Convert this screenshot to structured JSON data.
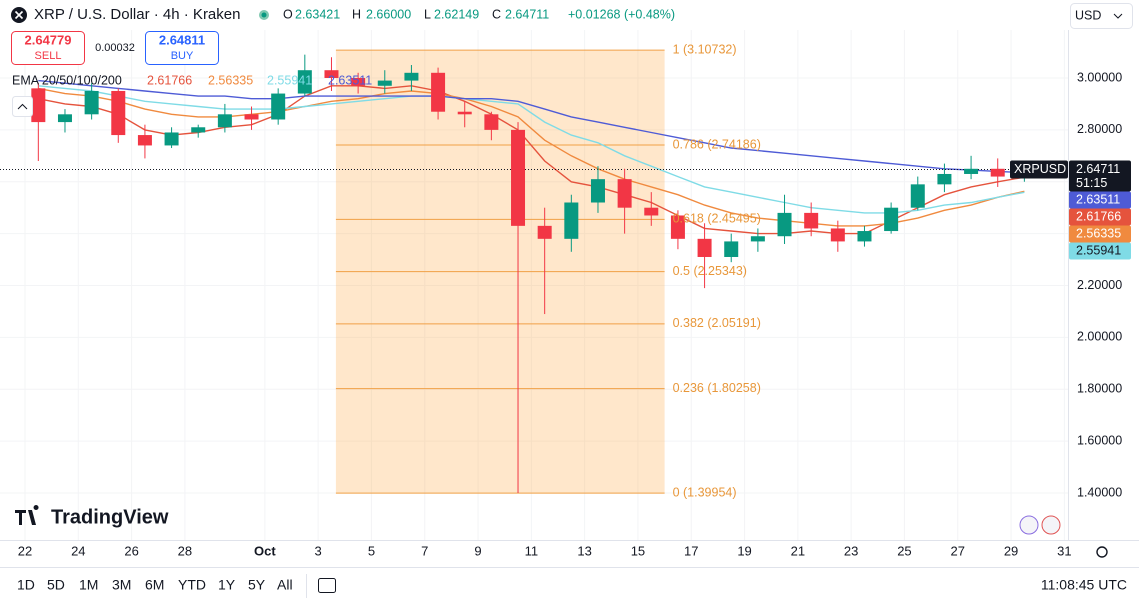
{
  "header": {
    "symbol": "XRP / U.S. Dollar · 4h · Kraken",
    "ohlc": [
      {
        "key": "O",
        "value": "2.63421"
      },
      {
        "key": "H",
        "value": "2.66000"
      },
      {
        "key": "L",
        "value": "2.62149"
      },
      {
        "key": "C",
        "value": "2.64711"
      }
    ],
    "change": "+0.01268 (+0.48%)",
    "currency": "USD"
  },
  "trade": {
    "sell_price": "2.64779",
    "sell": "SELL",
    "spread": "0.00032",
    "buy_price": "2.64811",
    "buy": "BUY"
  },
  "chart_data": {
    "type": "candlestick",
    "x": [
      "09-22",
      "09-23",
      "09-24",
      "09-25",
      "09-26",
      "09-27",
      "09-28",
      "09-29",
      "09-30",
      "10-01",
      "10-02",
      "10-03",
      "10-04",
      "10-05",
      "10-06",
      "10-07",
      "10-08",
      "10-09",
      "10-10",
      "10-11",
      "10-12",
      "10-13",
      "10-14",
      "10-15",
      "10-16",
      "10-17",
      "10-18",
      "10-19",
      "10-20",
      "10-21",
      "10-22",
      "10-23",
      "10-24",
      "10-25",
      "10-26",
      "10-27",
      "10-28",
      "10-29"
    ],
    "open": [
      2.96,
      2.83,
      2.86,
      2.95,
      2.78,
      2.74,
      2.79,
      2.81,
      2.86,
      2.84,
      2.94,
      3.03,
      3.0,
      2.97,
      2.99,
      3.02,
      2.87,
      2.86,
      2.8,
      2.43,
      2.38,
      2.52,
      2.61,
      2.5,
      2.47,
      2.38,
      2.31,
      2.37,
      2.39,
      2.48,
      2.42,
      2.37,
      2.41,
      2.5,
      2.59,
      2.63,
      2.65,
      2.62
    ],
    "high": [
      2.98,
      2.88,
      2.98,
      2.96,
      2.82,
      2.81,
      2.82,
      2.9,
      2.89,
      2.96,
      3.09,
      3.08,
      3.02,
      3.03,
      3.05,
      3.04,
      2.91,
      2.87,
      2.83,
      2.5,
      2.55,
      2.66,
      2.65,
      2.56,
      2.49,
      2.44,
      2.4,
      2.42,
      2.55,
      2.52,
      2.45,
      2.43,
      2.52,
      2.62,
      2.67,
      2.7,
      2.69,
      2.66
    ],
    "low": [
      2.68,
      2.79,
      2.84,
      2.75,
      2.69,
      2.73,
      2.77,
      2.79,
      2.8,
      2.82,
      2.93,
      2.95,
      2.94,
      2.94,
      2.95,
      2.84,
      2.81,
      2.76,
      1.4,
      2.09,
      2.33,
      2.48,
      2.4,
      2.43,
      2.34,
      2.19,
      2.29,
      2.33,
      2.36,
      2.39,
      2.33,
      2.35,
      2.4,
      2.49,
      2.56,
      2.61,
      2.58,
      2.6
    ],
    "close": [
      2.83,
      2.86,
      2.95,
      2.78,
      2.74,
      2.79,
      2.81,
      2.86,
      2.84,
      2.94,
      3.03,
      3.0,
      2.97,
      2.99,
      3.02,
      2.87,
      2.86,
      2.8,
      2.43,
      2.38,
      2.52,
      2.61,
      2.5,
      2.47,
      2.38,
      2.31,
      2.37,
      2.39,
      2.48,
      2.42,
      2.37,
      2.41,
      2.5,
      2.59,
      2.63,
      2.65,
      2.62,
      2.64711
    ],
    "up_color": "#089981",
    "down_color": "#f23645",
    "ylim": [
      1.219,
      3.185
    ],
    "yticks": [
      {
        "value": 1.4,
        "label": "1.40000"
      },
      {
        "value": 1.6,
        "label": "1.60000"
      },
      {
        "value": 1.8,
        "label": "1.80000"
      },
      {
        "value": 2,
        "label": "2.00000"
      },
      {
        "value": 2.2,
        "label": "2.20000"
      },
      {
        "value": 2.4,
        "label": "2.40000"
      },
      {
        "value": 2.6,
        "label": "2.60000"
      },
      {
        "value": 2.8,
        "label": "2.80000"
      },
      {
        "value": 3,
        "label": "3.00000"
      }
    ],
    "xticks": [
      {
        "value": "09-22",
        "label": "22"
      },
      {
        "value": "09-24",
        "label": "24"
      },
      {
        "value": "09-26",
        "label": "26"
      },
      {
        "value": "09-28",
        "label": "28"
      },
      {
        "value": "10-01",
        "label": "Oct"
      },
      {
        "value": "10-03",
        "label": "3"
      },
      {
        "value": "10-05",
        "label": "5"
      },
      {
        "value": "10-07",
        "label": "7"
      },
      {
        "value": "10-09",
        "label": "9"
      },
      {
        "value": "10-11",
        "label": "11"
      },
      {
        "value": "10-13",
        "label": "13"
      },
      {
        "value": "10-15",
        "label": "15"
      },
      {
        "value": "10-17",
        "label": "17"
      },
      {
        "value": "10-19",
        "label": "19"
      },
      {
        "value": "10-21",
        "label": "21"
      },
      {
        "value": "10-23",
        "label": "23"
      },
      {
        "value": "10-25",
        "label": "25"
      },
      {
        "value": "10-27",
        "label": "27"
      },
      {
        "value": "10-29",
        "label": "29"
      },
      {
        "value": "10-31",
        "label": "31"
      }
    ],
    "grid": true,
    "indicator": "EMA 20/50/100/200",
    "series": [
      {
        "color": "#e5533d",
        "values": [
          2.92,
          2.9,
          2.89,
          2.86,
          2.8,
          2.78,
          2.79,
          2.81,
          2.82,
          2.86,
          2.93,
          2.97,
          2.97,
          2.96,
          2.97,
          2.95,
          2.91,
          2.86,
          2.8,
          2.68,
          2.6,
          2.58,
          2.55,
          2.52,
          2.47,
          2.42,
          2.41,
          2.4,
          2.4,
          2.41,
          2.4,
          2.4,
          2.45,
          2.5,
          2.55,
          2.58,
          2.6,
          2.61766
        ]
      },
      {
        "color": "#f08a3f",
        "values": [
          2.96,
          2.94,
          2.93,
          2.91,
          2.88,
          2.86,
          2.85,
          2.85,
          2.86,
          2.87,
          2.89,
          2.91,
          2.92,
          2.94,
          2.95,
          2.94,
          2.92,
          2.89,
          2.85,
          2.76,
          2.7,
          2.65,
          2.61,
          2.58,
          2.55,
          2.51,
          2.48,
          2.46,
          2.45,
          2.44,
          2.43,
          2.43,
          2.44,
          2.46,
          2.49,
          2.51,
          2.54,
          2.56335
        ]
      },
      {
        "color": "#7fdbe6",
        "values": [
          2.97,
          2.96,
          2.95,
          2.93,
          2.91,
          2.9,
          2.89,
          2.88,
          2.88,
          2.88,
          2.89,
          2.9,
          2.91,
          2.92,
          2.93,
          2.93,
          2.92,
          2.91,
          2.9,
          2.83,
          2.78,
          2.75,
          2.7,
          2.66,
          2.62,
          2.58,
          2.56,
          2.54,
          2.52,
          2.5,
          2.49,
          2.48,
          2.48,
          2.49,
          2.51,
          2.52,
          2.54,
          2.55941
        ]
      },
      {
        "color": "#4e5bd6",
        "values": [
          2.99,
          2.98,
          2.97,
          2.96,
          2.95,
          2.94,
          2.93,
          2.93,
          2.92,
          2.92,
          2.93,
          2.93,
          2.93,
          2.93,
          2.93,
          2.93,
          2.92,
          2.92,
          2.91,
          2.88,
          2.85,
          2.83,
          2.81,
          2.79,
          2.77,
          2.75,
          2.73,
          2.72,
          2.71,
          2.7,
          2.69,
          2.68,
          2.67,
          2.66,
          2.65,
          2.645,
          2.64,
          2.63511
        ]
      }
    ],
    "last_price": {
      "symbol": "XRPUSD",
      "countdown": "51:15"
    },
    "fib": {
      "anchors": [
        "10-03 16:00",
        "10-16 00:00"
      ],
      "levels": [
        {
          "value": 3.10732,
          "label": "1 (3.10732)"
        },
        {
          "value": 2.74186,
          "label": "0.786 (2.74186)"
        },
        {
          "value": 2.45495,
          "label": "0.618 (2.45495)"
        },
        {
          "value": 2.25343,
          "label": "0.5 (2.25343)"
        },
        {
          "value": 2.05191,
          "label": "0.382 (2.05191)"
        },
        {
          "value": 1.80258,
          "label": "0.236 (1.80258)"
        },
        {
          "value": 1.39954,
          "label": "0 (1.39954)"
        }
      ]
    },
    "watermark": "TradingView"
  },
  "toolbar": {
    "ranges": [
      "1D",
      "5D",
      "1M",
      "3M",
      "6M",
      "YTD",
      "1Y",
      "5Y",
      "All"
    ],
    "time": "11:08:45 UTC"
  }
}
